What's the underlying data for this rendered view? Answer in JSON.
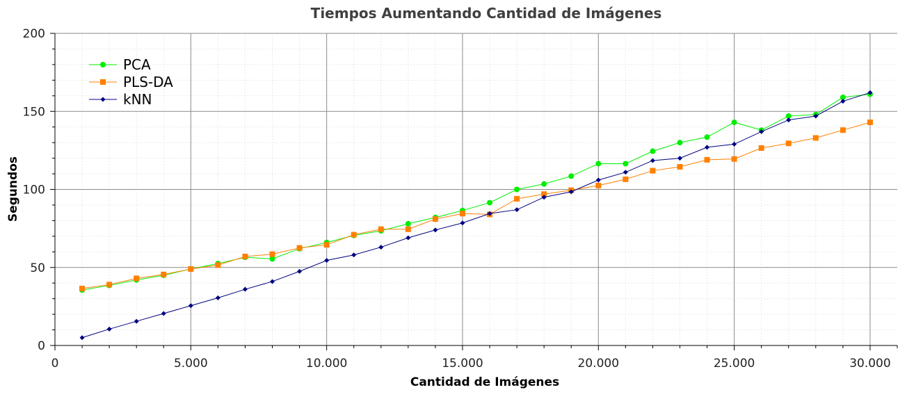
{
  "chart_data": {
    "type": "line",
    "title": "Tiempos Aumentando Cantidad de Imágenes",
    "xlabel": "Cantidad de Imágenes",
    "ylabel": "Segundos",
    "xlim": [
      0,
      31000
    ],
    "ylim": [
      0,
      200
    ],
    "x_ticks": [
      0,
      5000,
      10000,
      15000,
      20000,
      25000,
      30000
    ],
    "x_tick_labels": [
      "0",
      "5.000",
      "10.000",
      "15.000",
      "20.000",
      "25.000",
      "30.000"
    ],
    "y_ticks": [
      0,
      50,
      100,
      150,
      200
    ],
    "y_tick_labels": [
      "0",
      "50",
      "100",
      "150",
      "200"
    ],
    "grid": true,
    "legend_position": "top-left",
    "x": [
      1000,
      2000,
      3000,
      4000,
      5000,
      6000,
      7000,
      8000,
      9000,
      10000,
      11000,
      12000,
      13000,
      14000,
      15000,
      16000,
      17000,
      18000,
      19000,
      20000,
      21000,
      22000,
      23000,
      24000,
      25000,
      26000,
      27000,
      28000,
      29000,
      30000
    ],
    "series": [
      {
        "name": "PCA",
        "color": "#00ee00",
        "marker": "circle",
        "values": [
          35.5,
          38.5,
          42,
          45,
          49,
          52.5,
          56.5,
          55.5,
          62,
          66,
          70.5,
          73.5,
          78,
          82,
          86.5,
          91.5,
          100,
          103.5,
          108.5,
          116.5,
          116.5,
          124.5,
          130,
          133.5,
          143,
          138,
          147,
          148,
          159,
          161
        ]
      },
      {
        "name": "PLS-DA",
        "color": "#ff8000",
        "marker": "square",
        "values": [
          36.5,
          39,
          43,
          45.5,
          49,
          51.5,
          57,
          58.5,
          62.5,
          64.5,
          71,
          74.5,
          74.5,
          81,
          84.5,
          84,
          94,
          97,
          99.5,
          102.5,
          106.5,
          112,
          114.5,
          119,
          119.5,
          126.5,
          129.5,
          133,
          138,
          143
        ]
      },
      {
        "name": "kNN",
        "color": "#000080",
        "marker": "diamond",
        "values": [
          5,
          10.5,
          15.5,
          20.5,
          25.5,
          30.5,
          36,
          41,
          47.5,
          54.5,
          58,
          63,
          69,
          74,
          78.5,
          84.5,
          87,
          95,
          98.5,
          106,
          111,
          118.5,
          120,
          127,
          129,
          137,
          144.5,
          147,
          156.5,
          162
        ]
      }
    ]
  }
}
